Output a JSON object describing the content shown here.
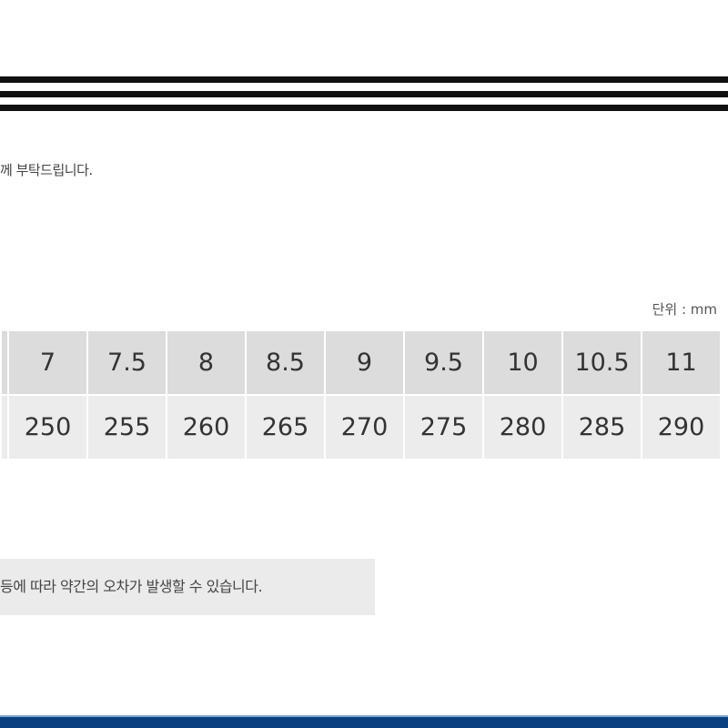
{
  "notice_text": "께 부탁드립니다.",
  "unit_label": "단위 : mm",
  "table": {
    "sizes": [
      "",
      "7",
      "7.5",
      "8",
      "8.5",
      "9",
      "9.5",
      "10",
      "10.5",
      "11"
    ],
    "lengths_mm": [
      "",
      "250",
      "255",
      "260",
      "265",
      "270",
      "275",
      "280",
      "285",
      "290"
    ]
  },
  "note_text": "등에 따라 약간의 오차가 발생할 수 있습니다.",
  "colors": {
    "footer": "#0a3f80",
    "header_row": "#dcdcdc",
    "value_row": "#ececec"
  }
}
